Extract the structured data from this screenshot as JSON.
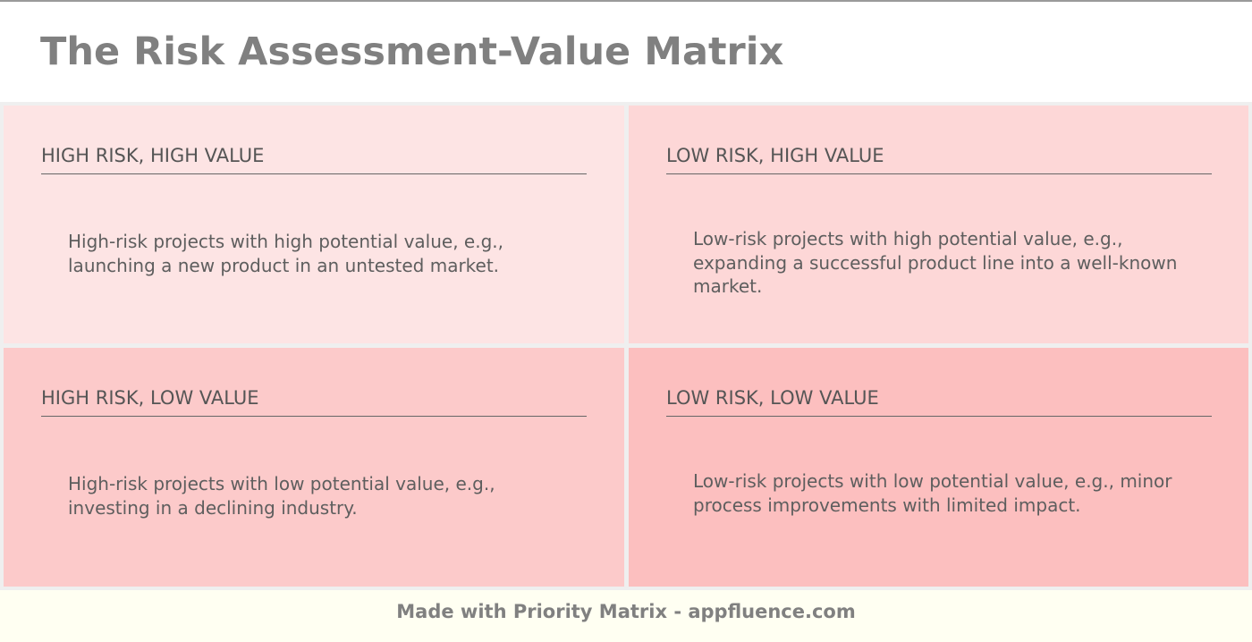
{
  "title": "The Risk Assessment-Value Matrix",
  "quadrants": [
    {
      "heading": "HIGH RISK, HIGH VALUE",
      "body": "High-risk projects with high potential value, e.g., launching a new product in an untested market.",
      "color": "#fde4e4"
    },
    {
      "heading": "LOW RISK, HIGH VALUE",
      "body": "Low-risk projects with high potential value, e.g., expanding a successful product line into a well-known market.",
      "color": "#fdd7d7"
    },
    {
      "heading": "HIGH RISK, LOW VALUE",
      "body": "High-risk projects with low potential value, e.g., investing in a declining industry.",
      "color": "#fccaca"
    },
    {
      "heading": "LOW RISK, LOW VALUE",
      "body": "Low-risk projects with low potential value, e.g., minor process improvements with limited impact.",
      "color": "#fcbfbf"
    }
  ],
  "footer": "Made with Priority Matrix - appfluence.com"
}
